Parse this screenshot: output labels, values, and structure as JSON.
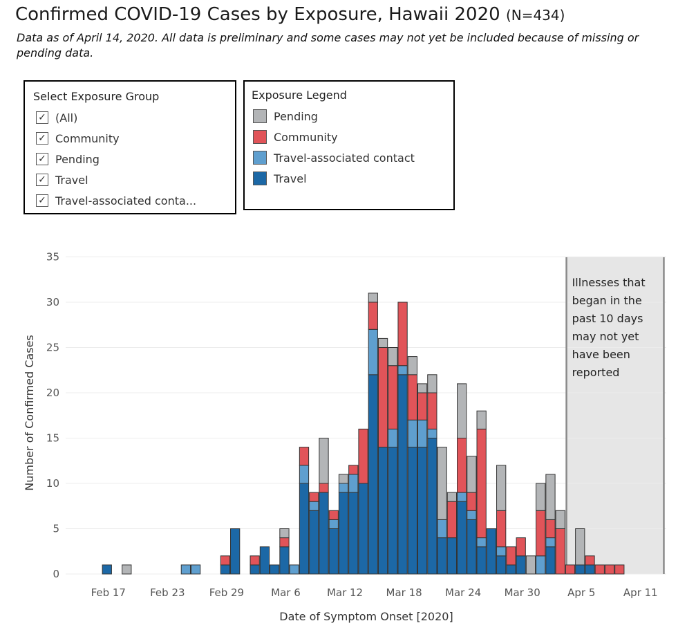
{
  "title": "Confirmed COVID-19 Cases by Exposure, Hawaii 2020",
  "title_n": "(N=434)",
  "subtitle": "Data as of April 14, 2020. All data is preliminary and some cases may not yet be included because of missing or pending data.",
  "filter": {
    "heading": "Select Exposure Group",
    "items": [
      {
        "label": "(All)",
        "checked": true
      },
      {
        "label": "Community",
        "checked": true
      },
      {
        "label": "Pending",
        "checked": true
      },
      {
        "label": "Travel",
        "checked": true
      },
      {
        "label": "Travel-associated conta...",
        "checked": true
      }
    ]
  },
  "legend": {
    "heading": "Exposure Legend",
    "items": [
      {
        "label": "Pending",
        "color": "#b3b5b7"
      },
      {
        "label": "Community",
        "color": "#e15459"
      },
      {
        "label": "Travel-associated contact",
        "color": "#5f9fcf"
      },
      {
        "label": "Travel",
        "color": "#1c68a6"
      }
    ]
  },
  "chart_data": {
    "type": "bar",
    "stacked": true,
    "xlabel": "Date of Symptom Onset [2020]",
    "ylabel": "Number of Confirmed Cases",
    "ylim": [
      0,
      35
    ],
    "yticks": [
      0,
      5,
      10,
      15,
      20,
      25,
      30,
      35
    ],
    "xlim": [
      "2020-02-14",
      "2020-04-17"
    ],
    "x_tick_labels": [
      {
        "date": "2020-02-17",
        "label": "Feb 17"
      },
      {
        "date": "2020-02-23",
        "label": "Feb 23"
      },
      {
        "date": "2020-02-29",
        "label": "Feb 29"
      },
      {
        "date": "2020-03-06",
        "label": "Mar 6"
      },
      {
        "date": "2020-03-12",
        "label": "Mar 12"
      },
      {
        "date": "2020-03-18",
        "label": "Mar 18"
      },
      {
        "date": "2020-03-24",
        "label": "Mar 24"
      },
      {
        "date": "2020-03-30",
        "label": "Mar 30"
      },
      {
        "date": "2020-04-05",
        "label": "Apr 5"
      },
      {
        "date": "2020-04-11",
        "label": "Apr 11"
      }
    ],
    "grid": true,
    "series_order": [
      "Travel",
      "Travel-associated contact",
      "Community",
      "Pending"
    ],
    "series_colors": {
      "Travel": "#1c68a6",
      "Travel-associated contact": "#5f9fcf",
      "Community": "#e15459",
      "Pending": "#b3b5b7"
    },
    "bars": [
      {
        "date": "2020-02-17",
        "Travel": 1,
        "Travel-associated contact": 0,
        "Community": 0,
        "Pending": 0
      },
      {
        "date": "2020-02-19",
        "Travel": 0,
        "Travel-associated contact": 0,
        "Community": 0,
        "Pending": 1
      },
      {
        "date": "2020-02-25",
        "Travel": 0,
        "Travel-associated contact": 1,
        "Community": 0,
        "Pending": 0
      },
      {
        "date": "2020-02-26",
        "Travel": 0,
        "Travel-associated contact": 1,
        "Community": 0,
        "Pending": 0
      },
      {
        "date": "2020-02-29",
        "Travel": 1,
        "Travel-associated contact": 0,
        "Community": 1,
        "Pending": 0
      },
      {
        "date": "2020-03-01",
        "Travel": 5,
        "Travel-associated contact": 0,
        "Community": 0,
        "Pending": 0
      },
      {
        "date": "2020-03-03",
        "Travel": 1,
        "Travel-associated contact": 0,
        "Community": 1,
        "Pending": 0
      },
      {
        "date": "2020-03-04",
        "Travel": 3,
        "Travel-associated contact": 0,
        "Community": 0,
        "Pending": 0
      },
      {
        "date": "2020-03-05",
        "Travel": 1,
        "Travel-associated contact": 0,
        "Community": 0,
        "Pending": 0
      },
      {
        "date": "2020-03-06",
        "Travel": 3,
        "Travel-associated contact": 0,
        "Community": 1,
        "Pending": 1
      },
      {
        "date": "2020-03-07",
        "Travel": 0,
        "Travel-associated contact": 1,
        "Community": 0,
        "Pending": 0
      },
      {
        "date": "2020-03-08",
        "Travel": 10,
        "Travel-associated contact": 2,
        "Community": 2,
        "Pending": 0
      },
      {
        "date": "2020-03-09",
        "Travel": 7,
        "Travel-associated contact": 1,
        "Community": 1,
        "Pending": 0
      },
      {
        "date": "2020-03-10",
        "Travel": 9,
        "Travel-associated contact": 0,
        "Community": 1,
        "Pending": 5
      },
      {
        "date": "2020-03-11",
        "Travel": 5,
        "Travel-associated contact": 1,
        "Community": 1,
        "Pending": 0
      },
      {
        "date": "2020-03-12",
        "Travel": 9,
        "Travel-associated contact": 1,
        "Community": 0,
        "Pending": 1
      },
      {
        "date": "2020-03-13",
        "Travel": 9,
        "Travel-associated contact": 2,
        "Community": 1,
        "Pending": 0
      },
      {
        "date": "2020-03-14",
        "Travel": 10,
        "Travel-associated contact": 0,
        "Community": 6,
        "Pending": 0
      },
      {
        "date": "2020-03-15",
        "Travel": 22,
        "Travel-associated contact": 5,
        "Community": 3,
        "Pending": 1
      },
      {
        "date": "2020-03-16",
        "Travel": 14,
        "Travel-associated contact": 0,
        "Community": 11,
        "Pending": 1
      },
      {
        "date": "2020-03-17",
        "Travel": 14,
        "Travel-associated contact": 2,
        "Community": 7,
        "Pending": 2
      },
      {
        "date": "2020-03-18",
        "Travel": 22,
        "Travel-associated contact": 1,
        "Community": 7,
        "Pending": 0
      },
      {
        "date": "2020-03-19",
        "Travel": 14,
        "Travel-associated contact": 3,
        "Community": 5,
        "Pending": 2
      },
      {
        "date": "2020-03-20",
        "Travel": 14,
        "Travel-associated contact": 3,
        "Community": 3,
        "Pending": 1
      },
      {
        "date": "2020-03-21",
        "Travel": 15,
        "Travel-associated contact": 1,
        "Community": 4,
        "Pending": 2
      },
      {
        "date": "2020-03-22",
        "Travel": 4,
        "Travel-associated contact": 2,
        "Community": 0,
        "Pending": 8
      },
      {
        "date": "2020-03-23",
        "Travel": 4,
        "Travel-associated contact": 0,
        "Community": 4,
        "Pending": 1
      },
      {
        "date": "2020-03-24",
        "Travel": 8,
        "Travel-associated contact": 1,
        "Community": 6,
        "Pending": 6
      },
      {
        "date": "2020-03-25",
        "Travel": 6,
        "Travel-associated contact": 1,
        "Community": 2,
        "Pending": 4
      },
      {
        "date": "2020-03-26",
        "Travel": 3,
        "Travel-associated contact": 1,
        "Community": 12,
        "Pending": 2
      },
      {
        "date": "2020-03-27",
        "Travel": 5,
        "Travel-associated contact": 0,
        "Community": 0,
        "Pending": 0
      },
      {
        "date": "2020-03-28",
        "Travel": 2,
        "Travel-associated contact": 1,
        "Community": 4,
        "Pending": 5
      },
      {
        "date": "2020-03-29",
        "Travel": 1,
        "Travel-associated contact": 0,
        "Community": 2,
        "Pending": 0
      },
      {
        "date": "2020-03-30",
        "Travel": 2,
        "Travel-associated contact": 0,
        "Community": 2,
        "Pending": 0
      },
      {
        "date": "2020-03-31",
        "Travel": 0,
        "Travel-associated contact": 0,
        "Community": 0,
        "Pending": 2
      },
      {
        "date": "2020-04-01",
        "Travel": 0,
        "Travel-associated contact": 2,
        "Community": 5,
        "Pending": 3
      },
      {
        "date": "2020-04-02",
        "Travel": 3,
        "Travel-associated contact": 1,
        "Community": 2,
        "Pending": 5
      },
      {
        "date": "2020-04-03",
        "Travel": 0,
        "Travel-associated contact": 0,
        "Community": 5,
        "Pending": 2
      },
      {
        "date": "2020-04-04",
        "Travel": 0,
        "Travel-associated contact": 0,
        "Community": 1,
        "Pending": 0
      },
      {
        "date": "2020-04-05",
        "Travel": 1,
        "Travel-associated contact": 0,
        "Community": 0,
        "Pending": 4
      },
      {
        "date": "2020-04-06",
        "Travel": 1,
        "Travel-associated contact": 0,
        "Community": 1,
        "Pending": 0
      },
      {
        "date": "2020-04-07",
        "Travel": 0,
        "Travel-associated contact": 0,
        "Community": 1,
        "Pending": 0
      },
      {
        "date": "2020-04-08",
        "Travel": 0,
        "Travel-associated contact": 0,
        "Community": 1,
        "Pending": 0
      },
      {
        "date": "2020-04-09",
        "Travel": 0,
        "Travel-associated contact": 0,
        "Community": 1,
        "Pending": 0
      }
    ],
    "annotation": {
      "from": "2020-04-03",
      "to": "2020-04-13",
      "lines": [
        "Illnesses that",
        "began in the",
        "past 10 days",
        "may not yet",
        "have been",
        "reported"
      ]
    }
  }
}
